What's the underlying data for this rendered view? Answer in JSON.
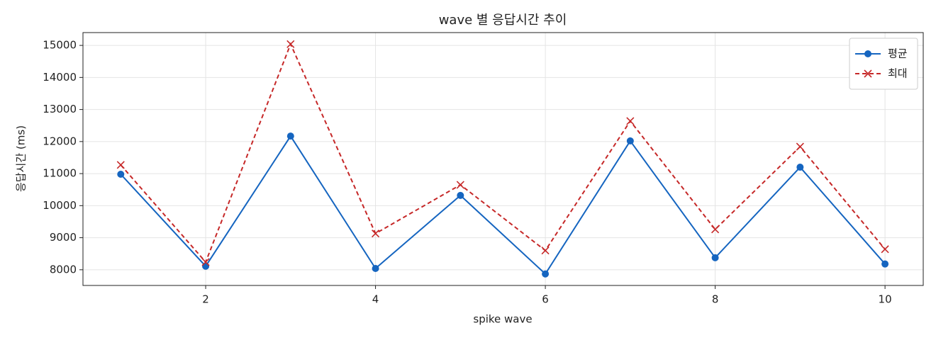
{
  "chart_data": {
    "type": "line",
    "title": "wave 별 응답시간 추이",
    "x_label": "spike wave",
    "y_label": "응답시간 (ms)",
    "x": [
      1,
      2,
      3,
      4,
      5,
      6,
      7,
      8,
      9,
      10
    ],
    "series": [
      {
        "name": "평균",
        "color": "#1565c0",
        "marker": "o",
        "linestyle": "solid",
        "values": [
          10980,
          8110,
          12170,
          8040,
          10320,
          7870,
          12020,
          8375,
          11200,
          8180
        ]
      },
      {
        "name": "최대",
        "color": "#c62828",
        "marker": "x",
        "linestyle": "dashed",
        "values": [
          11270,
          8240,
          15040,
          9130,
          10650,
          8600,
          12640,
          9260,
          11840,
          8640
        ]
      }
    ],
    "xlim": [
      0.555,
      10.45
    ],
    "ylim": [
      7510,
      15400
    ],
    "xticks": [
      2,
      4,
      6,
      8,
      10
    ],
    "yticks": [
      8000,
      9000,
      10000,
      11000,
      12000,
      13000,
      14000,
      15000
    ],
    "grid": true,
    "legend": "upper right"
  }
}
